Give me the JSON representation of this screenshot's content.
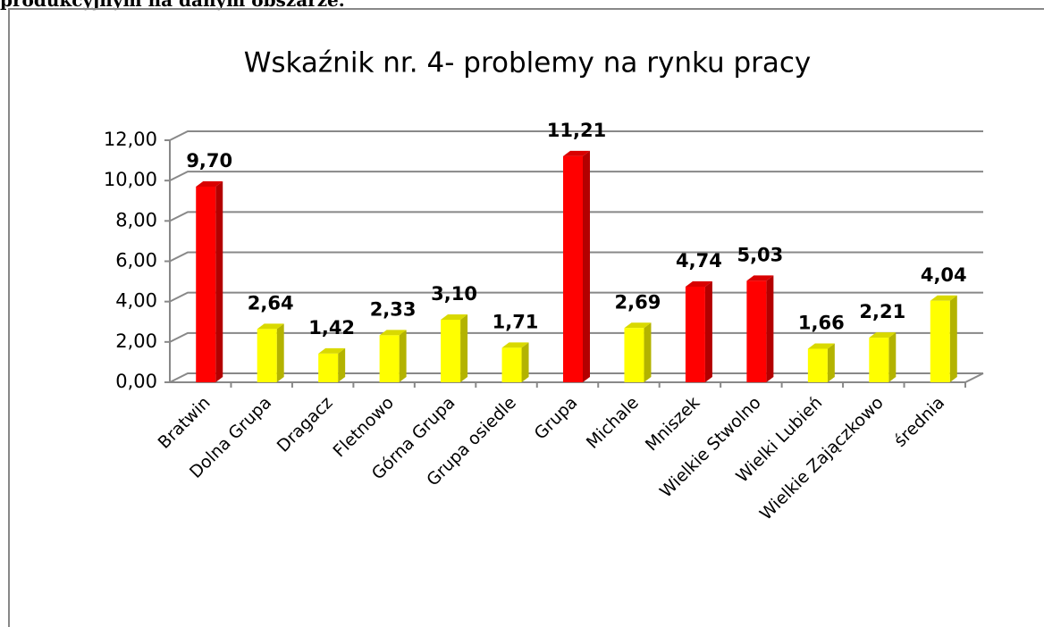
{
  "page_text": "produkcyjnym na danym obszarze.",
  "chart_data": {
    "type": "bar",
    "title": "Wskaźnik nr. 4- problemy na rynku pracy",
    "categories": [
      "Bratwin",
      "Dolna Grupa",
      "Dragacz",
      "Fletnowo",
      "Górna Grupa",
      "Grupa osiedle",
      "Grupa",
      "Michale",
      "Mniszek",
      "Wielkie Stwolno",
      "Wielki Lubień",
      "Wielkie Zajączkowo",
      "średnia"
    ],
    "values": [
      9.7,
      2.64,
      1.42,
      2.33,
      3.1,
      1.71,
      11.21,
      2.69,
      4.74,
      5.03,
      1.66,
      2.21,
      4.04
    ],
    "value_labels": [
      "9,70",
      "2,64",
      "1,42",
      "2,33",
      "3,10",
      "1,71",
      "11,21",
      "2,69",
      "4,74",
      "5,03",
      "1,66",
      "2,21",
      "4,04"
    ],
    "colors": [
      "#ff0000",
      "#ffff00",
      "#ffff00",
      "#ffff00",
      "#ffff00",
      "#ffff00",
      "#ff0000",
      "#ffff00",
      "#ff0000",
      "#ff0000",
      "#ffff00",
      "#ffff00",
      "#ffff00"
    ],
    "ylim": [
      0,
      12
    ],
    "yticks": [
      {
        "value": 0,
        "label": "0,00"
      },
      {
        "value": 2,
        "label": "2,00"
      },
      {
        "value": 4,
        "label": "4,00"
      },
      {
        "value": 6,
        "label": "6,00"
      },
      {
        "value": 8,
        "label": "8,00"
      },
      {
        "value": 10,
        "label": "10,00"
      },
      {
        "value": 12,
        "label": "12,00"
      }
    ],
    "grid": true
  }
}
